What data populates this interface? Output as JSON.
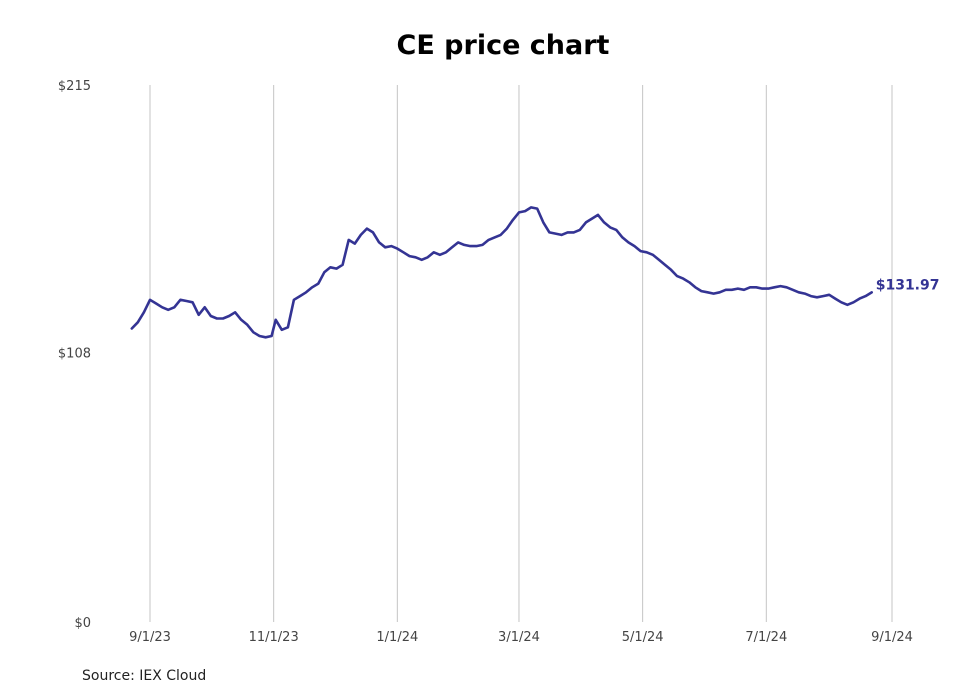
{
  "chart_data": {
    "type": "line",
    "title": "CE price chart",
    "source": "Source: IEX Cloud",
    "xlabel": "",
    "ylabel": "",
    "ylim": [
      0,
      215
    ],
    "y_ticks": [
      "$0",
      "$108",
      "$215"
    ],
    "y_tick_values": [
      0,
      108,
      215
    ],
    "x_ticks": [
      "9/1/23",
      "11/1/23",
      "1/1/24",
      "3/1/24",
      "5/1/24",
      "7/1/24",
      "9/1/24"
    ],
    "x_tick_dates": [
      "2023-09-01",
      "2023-11-01",
      "2024-01-01",
      "2024-03-01",
      "2024-05-01",
      "2024-07-01",
      "2024-09-01"
    ],
    "grid": "vertical",
    "line_color": "#343494",
    "last_value_label": "$131.97",
    "series": [
      {
        "points": [
          [
            "2023-08-23",
            117.5
          ],
          [
            "2023-08-26",
            120
          ],
          [
            "2023-08-29",
            124
          ],
          [
            "2023-09-01",
            129
          ],
          [
            "2023-09-04",
            127.5
          ],
          [
            "2023-09-07",
            126
          ],
          [
            "2023-09-10",
            125
          ],
          [
            "2023-09-13",
            126
          ],
          [
            "2023-09-16",
            129
          ],
          [
            "2023-09-19",
            128.5
          ],
          [
            "2023-09-22",
            128
          ],
          [
            "2023-09-25",
            123
          ],
          [
            "2023-09-28",
            126
          ],
          [
            "2023-10-01",
            122.5
          ],
          [
            "2023-10-04",
            121.5
          ],
          [
            "2023-10-07",
            121.5
          ],
          [
            "2023-10-10",
            122.5
          ],
          [
            "2023-10-13",
            124
          ],
          [
            "2023-10-16",
            121
          ],
          [
            "2023-10-19",
            119
          ],
          [
            "2023-10-22",
            116
          ],
          [
            "2023-10-25",
            114.5
          ],
          [
            "2023-10-28",
            114
          ],
          [
            "2023-10-31",
            114.5
          ],
          [
            "2023-11-02",
            121
          ],
          [
            "2023-11-05",
            117
          ],
          [
            "2023-11-08",
            118
          ],
          [
            "2023-11-11",
            129
          ],
          [
            "2023-11-14",
            130.5
          ],
          [
            "2023-11-17",
            132
          ],
          [
            "2023-11-20",
            134
          ],
          [
            "2023-11-23",
            135.5
          ],
          [
            "2023-11-26",
            140
          ],
          [
            "2023-11-29",
            142
          ],
          [
            "2023-12-02",
            141.5
          ],
          [
            "2023-12-05",
            143
          ],
          [
            "2023-12-08",
            153
          ],
          [
            "2023-12-11",
            151.5
          ],
          [
            "2023-12-14",
            155
          ],
          [
            "2023-12-17",
            157.5
          ],
          [
            "2023-12-20",
            156
          ],
          [
            "2023-12-23",
            152
          ],
          [
            "2023-12-26",
            150
          ],
          [
            "2023-12-29",
            150.5
          ],
          [
            "2024-01-01",
            149.5
          ],
          [
            "2024-01-04",
            148
          ],
          [
            "2024-01-07",
            146.5
          ],
          [
            "2024-01-10",
            146
          ],
          [
            "2024-01-13",
            145
          ],
          [
            "2024-01-16",
            146
          ],
          [
            "2024-01-19",
            148
          ],
          [
            "2024-01-22",
            147
          ],
          [
            "2024-01-25",
            148
          ],
          [
            "2024-01-28",
            150
          ],
          [
            "2024-01-31",
            152
          ],
          [
            "2024-02-03",
            151
          ],
          [
            "2024-02-06",
            150.5
          ],
          [
            "2024-02-09",
            150.5
          ],
          [
            "2024-02-12",
            151
          ],
          [
            "2024-02-15",
            153
          ],
          [
            "2024-02-18",
            154
          ],
          [
            "2024-02-21",
            155
          ],
          [
            "2024-02-24",
            157.5
          ],
          [
            "2024-02-27",
            161
          ],
          [
            "2024-03-01",
            164
          ],
          [
            "2024-03-04",
            164.5
          ],
          [
            "2024-03-07",
            166
          ],
          [
            "2024-03-10",
            165.5
          ],
          [
            "2024-03-13",
            160
          ],
          [
            "2024-03-16",
            156
          ],
          [
            "2024-03-19",
            155.5
          ],
          [
            "2024-03-22",
            155
          ],
          [
            "2024-03-25",
            156
          ],
          [
            "2024-03-28",
            156
          ],
          [
            "2024-03-31",
            157
          ],
          [
            "2024-04-03",
            160
          ],
          [
            "2024-04-06",
            161.5
          ],
          [
            "2024-04-09",
            163
          ],
          [
            "2024-04-12",
            160
          ],
          [
            "2024-04-15",
            158
          ],
          [
            "2024-04-18",
            157
          ],
          [
            "2024-04-21",
            154
          ],
          [
            "2024-04-24",
            152
          ],
          [
            "2024-04-27",
            150.5
          ],
          [
            "2024-04-30",
            148.5
          ],
          [
            "2024-05-03",
            148
          ],
          [
            "2024-05-06",
            147
          ],
          [
            "2024-05-09",
            145
          ],
          [
            "2024-05-12",
            143
          ],
          [
            "2024-05-15",
            141
          ],
          [
            "2024-05-18",
            138.5
          ],
          [
            "2024-05-21",
            137.5
          ],
          [
            "2024-05-24",
            136
          ],
          [
            "2024-05-27",
            134
          ],
          [
            "2024-05-30",
            132.5
          ],
          [
            "2024-06-02",
            132
          ],
          [
            "2024-06-05",
            131.5
          ],
          [
            "2024-06-08",
            132
          ],
          [
            "2024-06-11",
            133
          ],
          [
            "2024-06-14",
            133
          ],
          [
            "2024-06-17",
            133.5
          ],
          [
            "2024-06-20",
            133
          ],
          [
            "2024-06-23",
            134
          ],
          [
            "2024-06-26",
            134
          ],
          [
            "2024-06-29",
            133.5
          ],
          [
            "2024-07-02",
            133.5
          ],
          [
            "2024-07-05",
            134
          ],
          [
            "2024-07-08",
            134.5
          ],
          [
            "2024-07-11",
            134
          ],
          [
            "2024-07-14",
            133
          ],
          [
            "2024-07-17",
            132
          ],
          [
            "2024-07-20",
            131.5
          ],
          [
            "2024-07-23",
            130.5
          ],
          [
            "2024-07-26",
            130
          ],
          [
            "2024-07-29",
            130.5
          ],
          [
            "2024-08-01",
            131
          ],
          [
            "2024-08-04",
            129.5
          ],
          [
            "2024-08-07",
            128
          ],
          [
            "2024-08-10",
            127
          ],
          [
            "2024-08-13",
            128
          ],
          [
            "2024-08-16",
            129.5
          ],
          [
            "2024-08-19",
            130.5
          ],
          [
            "2024-08-22",
            131.97
          ]
        ]
      }
    ]
  }
}
